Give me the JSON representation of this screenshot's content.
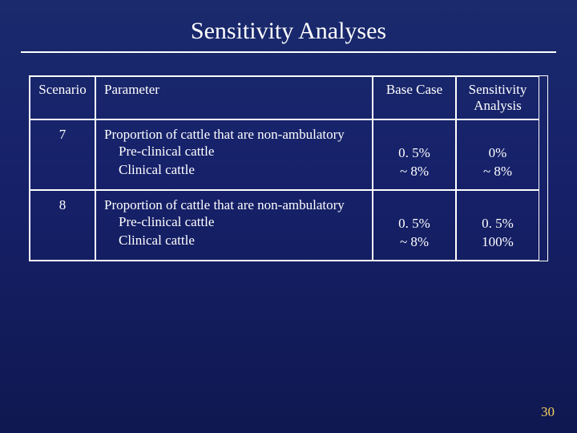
{
  "title": "Sensitivity Analyses",
  "page_number": "30",
  "colors": {
    "text": "#ffffff",
    "border": "#ffffff",
    "pagenum": "#f5d060",
    "bg_top": "#1a2a6c",
    "bg_bottom": "#101850"
  },
  "table": {
    "headers": {
      "scenario": "Scenario",
      "parameter": "Parameter",
      "base": "Base Case",
      "sens": "Sensitivity Analysis"
    },
    "rows": [
      {
        "scenario": "7",
        "param_main": "Proportion of cattle that are non-ambulatory",
        "param_sub1": "Pre-clinical cattle",
        "param_sub2": "Clinical cattle",
        "base_v1": "0. 5%",
        "base_v2": "~ 8%",
        "sens_v1": "0%",
        "sens_v2": "~ 8%"
      },
      {
        "scenario": "8",
        "param_main": "Proportion of cattle that are non-ambulatory",
        "param_sub1": "Pre-clinical cattle",
        "param_sub2": "Clinical cattle",
        "base_v1": "0. 5%",
        "base_v2": "~ 8%",
        "sens_v1": "0. 5%",
        "sens_v2": "100%"
      }
    ]
  }
}
